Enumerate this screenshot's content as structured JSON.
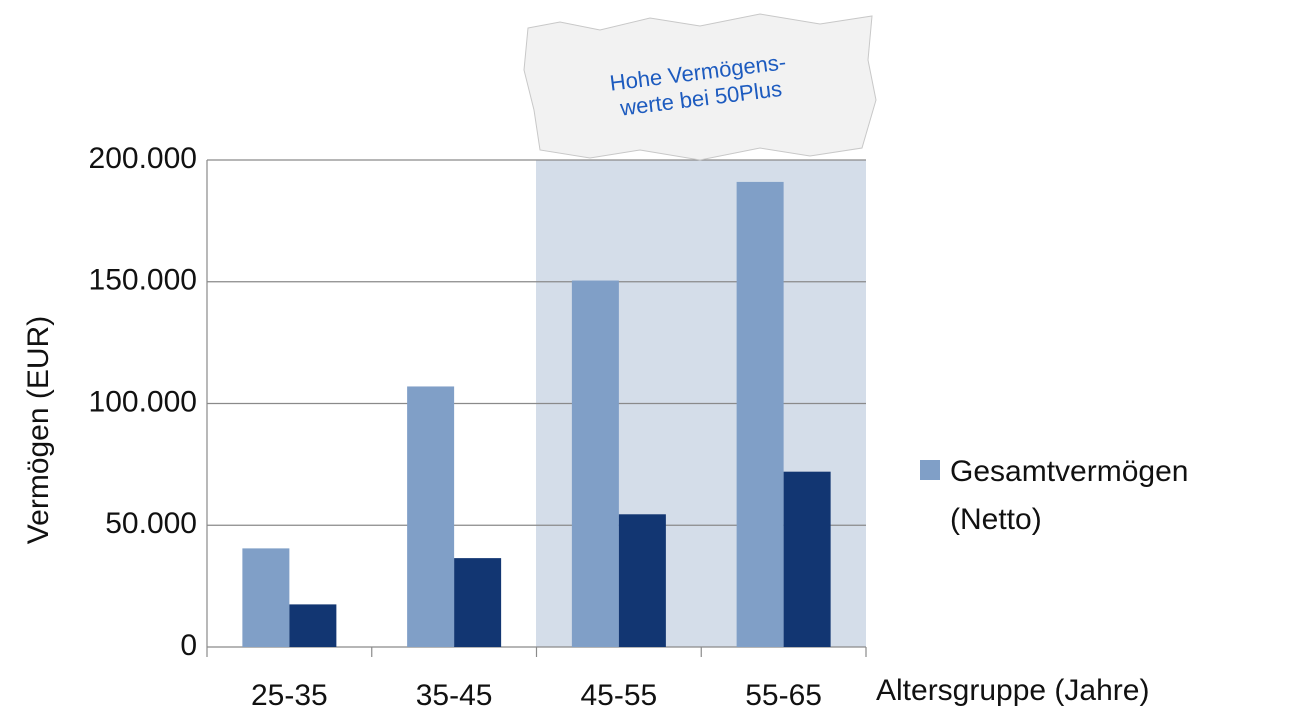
{
  "chart_data": {
    "type": "bar",
    "y_label": "Vermögen (EUR)",
    "x_label": "Altersgruppe (Jahre)",
    "annotation": [
      "Hohe Vermögens-",
      "werte bei 50Plus"
    ],
    "categories": [
      "25-35",
      "35-45",
      "45-55",
      "55-65"
    ],
    "series": [
      {
        "name": "Gesamtvermögen (Netto)",
        "color": "#809fc7",
        "values": [
          40500,
          107000,
          150500,
          191000
        ]
      },
      {
        "color": "#123672",
        "values": [
          17500,
          36500,
          54500,
          72000
        ]
      }
    ],
    "ylim": [
      0,
      200000
    ],
    "yticks": [
      0,
      {
        "value": 50000,
        "label": "50.000"
      },
      {
        "value": 100000,
        "label": "100.000"
      },
      {
        "value": 150000,
        "label": "150.000"
      },
      {
        "value": 200000,
        "label": "200.000"
      }
    ],
    "grid": true,
    "legend": "right"
  }
}
